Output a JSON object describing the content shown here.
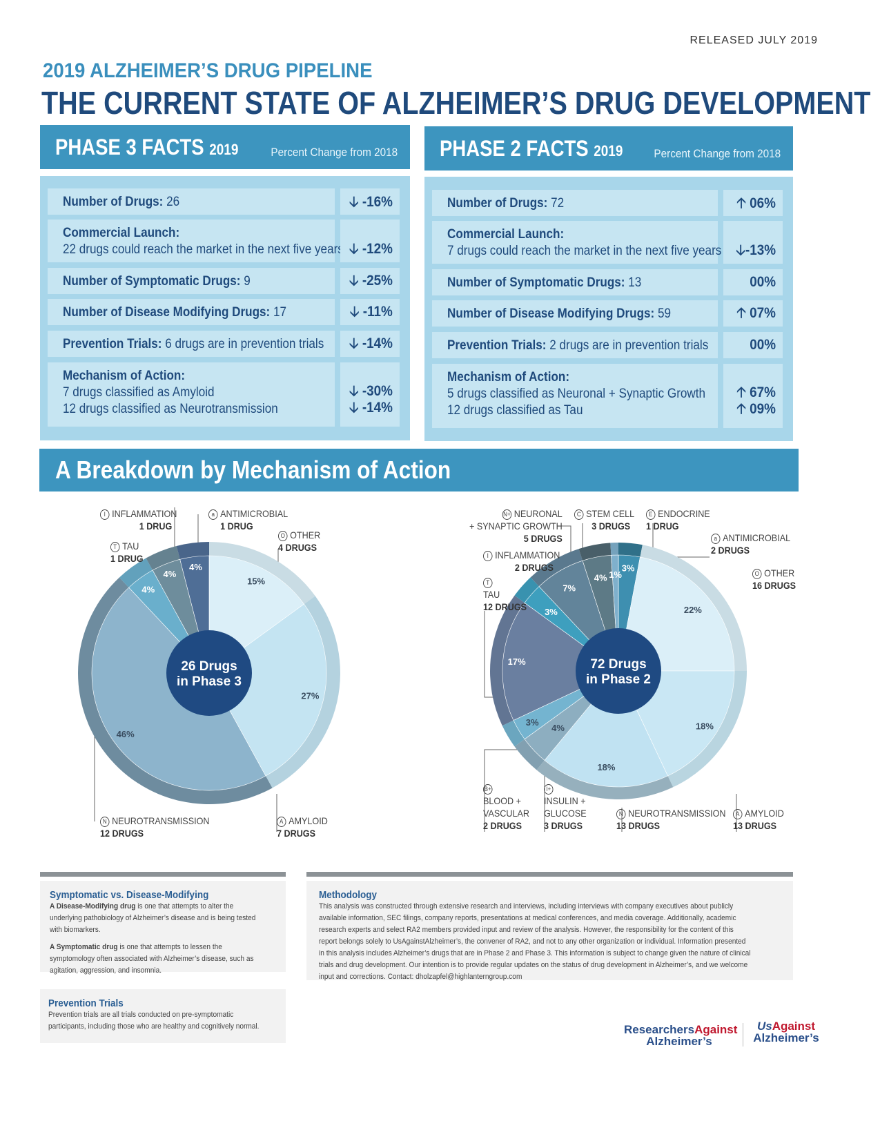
{
  "released": "RELEASED JULY 2019",
  "supertitle": "2019 ALZHEIMER’S DRUG PIPELINE",
  "title": "THE CURRENT STATE OF ALZHEIMER’S DRUG DEVELOPMENT",
  "phase3": {
    "heading": "PHASE 3 FACTS",
    "year": "2019",
    "change_header": "Percent Change from 2018",
    "drugs_label": "Number of Drugs:",
    "drugs_value": "26",
    "drugs_change": "-16%",
    "launch_label": "Commercial Launch:",
    "launch_text": "22 drugs could reach the market in the next five years",
    "launch_change": "-12%",
    "symptomatic_label": "Number of Symptomatic Drugs:",
    "symptomatic_value": "9",
    "symptomatic_change": "-25%",
    "disease_label": "Number of Disease Modifying Drugs:",
    "disease_value": "17",
    "disease_change": "-11%",
    "prevention_label": "Prevention Trials:",
    "prevention_text": "6 drugs are in prevention trials",
    "prevention_change": "-14%",
    "moa_label": "Mechanism of Action:",
    "moa_line1": "7 drugs classified as Amyloid",
    "moa_line2": "12 drugs classified as Neurotransmission",
    "moa_change1": "-30%",
    "moa_change2": "-14%"
  },
  "phase2": {
    "heading": "PHASE 2 FACTS",
    "year": "2019",
    "change_header": "Percent Change from 2018",
    "drugs_label": "Number of Drugs:",
    "drugs_value": "72",
    "drugs_change": "06%",
    "launch_label": "Commercial Launch:",
    "launch_text": "7 drugs could reach the market in the next five years",
    "launch_change": "-13%",
    "symptomatic_label": "Number of Symptomatic Drugs:",
    "symptomatic_value": "13",
    "symptomatic_change": "00%",
    "disease_label": "Number of Disease Modifying Drugs:",
    "disease_value": "59",
    "disease_change": "07%",
    "prevention_label": "Prevention Trials:",
    "prevention_text": "2 drugs are in prevention trials",
    "prevention_change": "00%",
    "moa_label": "Mechanism of Action:",
    "moa_line1": "5 drugs classified as Neuronal + Synaptic Growth",
    "moa_line2": "12 drugs classified as Tau",
    "moa_change1": "67%",
    "moa_change2": "09%"
  },
  "breakdown_title": "A Breakdown by Mechanism of Action",
  "chart_data": [
    {
      "type": "pie",
      "center_line1": "26 Drugs",
      "center_line2": "in Phase 3",
      "categories": [
        "Other",
        "Amyloid",
        "Neurotransmission",
        "Tau",
        "Inflammation",
        "Antimicrobial"
      ],
      "values": [
        15,
        27,
        46,
        4,
        4,
        4
      ],
      "labels": [
        "15%",
        "27%",
        "46%",
        "4%",
        "4%",
        "4%"
      ],
      "counts": [
        "4 DRUGS",
        "7 DRUGS",
        "12 DRUGS",
        "1 DRUG",
        "1 DRUG",
        "1 DRUG"
      ],
      "colors": [
        "#dbeff8",
        "#c4e4f2",
        "#8db4cc",
        "#6aafcc",
        "#6e8d9c",
        "#4f6e96"
      ]
    },
    {
      "type": "pie",
      "center_line1": "72 Drugs",
      "center_line2": "in Phase 2",
      "categories": [
        "Antimicrobial",
        "Other",
        "Amyloid",
        "Neurotransmission",
        "Insulin + Glucose",
        "Blood + Vascular",
        "Tau",
        "Inflammation",
        "Neuronal + Synaptic Growth",
        "Stem Cell",
        "Endocrine"
      ],
      "values": [
        3,
        22,
        18,
        18,
        4,
        3,
        17,
        3,
        7,
        4,
        1
      ],
      "labels": [
        "3%",
        "22%",
        "18%",
        "18%",
        "4%",
        "3%",
        "17%",
        "3%",
        "7%",
        "4%",
        "1%"
      ],
      "counts": [
        "2 DRUGS",
        "16 DRUGS",
        "13 DRUGS",
        "13 DRUGS",
        "3 DRUGS",
        "2 DRUGS",
        "12 DRUGS",
        "2 DRUGS",
        "5 DRUGS",
        "3 DRUGS",
        "1 DRUG"
      ],
      "colors": [
        "#3e8fb0",
        "#dbeff8",
        "#c9e7f4",
        "#c0e2f2",
        "#8daec0",
        "#74b4d0",
        "#6a7fa0",
        "#3e9fbe",
        "#62849a",
        "#5d7a86",
        "#7fb0cc"
      ]
    }
  ],
  "labels": {
    "p3_inflammation": "INFLAMMATION",
    "p3_inflammation_n": "1 DRUG",
    "p3_antimicrobial": "ANTIMICROBIAL",
    "p3_antimicrobial_n": "1 DRUG",
    "p3_tau": "TAU",
    "p3_tau_n": "1 DRUG",
    "p3_other": "OTHER",
    "p3_other_n": "4 DRUGS",
    "p3_neuro": "NEUROTRANSMISSION",
    "p3_neuro_n": "12 DRUGS",
    "p3_amyloid": "AMYLOID",
    "p3_amyloid_n": "7 DRUGS",
    "p2_neuronal1": "NEURONAL",
    "p2_neuronal2": "+ SYNAPTIC GROWTH",
    "p2_neuronal_n": "5 DRUGS",
    "p2_stem": "STEM CELL",
    "p2_stem_n": "3 DRUGS",
    "p2_endocrine": "ENDOCRINE",
    "p2_endocrine_n": "1 DRUG",
    "p2_antimicrobial": "ANTIMICROBIAL",
    "p2_antimicrobial_n": "2 DRUGS",
    "p2_inflammation": "INFLAMMATION",
    "p2_inflammation_n": "2 DRUGS",
    "p2_other": "OTHER",
    "p2_other_n": "16 DRUGS",
    "p2_tau": "TAU",
    "p2_tau_n": "12 DRUGS",
    "p2_blood1": "BLOOD +",
    "p2_blood2": "VASCULAR",
    "p2_blood_n": "2 DRUGS",
    "p2_insulin1": "INSULIN +",
    "p2_insulin2": "GLUCOSE",
    "p2_insulin_n": "3 DRUGS",
    "p2_neuro": "NEUROTRANSMISSION",
    "p2_neuro_n": "13 DRUGS",
    "p2_amyloid": "AMYLOID",
    "p2_amyloid_n": "13 DRUGS"
  },
  "badges": {
    "inflammation": "I",
    "antimicrobial": "a",
    "tau": "T",
    "other": "O",
    "neuro": "N",
    "amyloid": "A",
    "neuronal": "N+",
    "stem": "C",
    "endocrine": "E",
    "blood": "B+",
    "insulin": "I+"
  },
  "symptomatic_box": {
    "title": "Symptomatic vs. Disease-Modifying",
    "p1_bold": "A Disease-Modifying drug",
    "p1_text": "is one that attempts to alter the underlying pathobiology of Alzheimer’s disease and is being tested with biomarkers.",
    "p2_bold": "A Symptomatic drug",
    "p2_text": "is one that attempts to lessen the symptomology often associated with Alzheimer’s disease, such as agitation, aggression, and insomnia."
  },
  "methodology_box": {
    "title": "Methodology",
    "text": "This analysis was constructed through extensive research and interviews, including interviews with company executives about publicly available information, SEC filings, company reports, presentations at medical conferences, and media coverage. Additionally, academic research experts and select RA2 members provided input and review of the analysis. However, the responsibility for the content of this report belongs solely to UsAgainstAlzheimer’s, the convener of RA2, and not to any other organization or individual. Information presented in this analysis includes Alzheimer’s drugs that are in Phase 2 and Phase 3. This information is subject to change given the nature of clinical trials and drug development. Our intention is to provide regular updates on the status of drug development in Alzheimer’s, and we welcome input and corrections. Contact: dholzapfel@highlanterngroup.com"
  },
  "prevention_box": {
    "title": "Prevention Trials",
    "text": "Prevention trials are all trials conducted on pre-symptomatic participants, including those who are healthy and cognitively normal."
  },
  "logos": {
    "ra_line1a": "Researchers",
    "ra_line1b": "Against",
    "ra_line2": "Alzheimer’s",
    "us_line1a": "Us",
    "us_line1b": "Against",
    "us_line2": "Alzheimer’s"
  }
}
